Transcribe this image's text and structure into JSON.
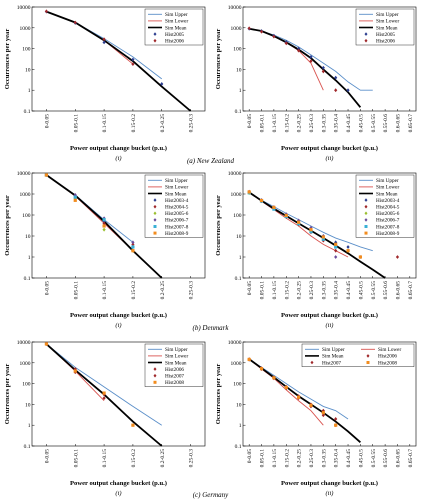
{
  "captions": [
    "(a) New Zealand",
    "(b) Denmark",
    "(c) Germany"
  ],
  "colors": {
    "Sim Upper": "#5b8fc9",
    "Sim Lower": "#d9534f",
    "Sim Mean": "#000000",
    "Hist2005": "#2c3e8f",
    "Hist2006": "#a0282b",
    "Hist2003-4": "#2c3e8f",
    "Hist2004-5": "#a0282b",
    "Hist2005-6": "#9bbf2f",
    "Hist2006-7": "#6a4c9c",
    "Hist2007-8": "#3ab0d6",
    "Hist2008-9": "#f28c1e",
    "Hist2007": "#a0282b",
    "Hist2008": "#f28c1e"
  },
  "chart_data": [
    {
      "type": "line",
      "panel": "(i)",
      "caption": "(a) New Zealand",
      "xlabel": "Power output change bucket (p.u.)",
      "ylabel": "Occurrences per year",
      "categories": [
        "0-0.05",
        "0.05-0.1",
        "0.1-0.15",
        "0.15-0.2",
        "0.2-0.25",
        "0.25-0.3"
      ],
      "ylim": [
        0.1,
        10000
      ],
      "yscale": "log",
      "legend": "top-right",
      "series": [
        {
          "name": "Sim Upper",
          "kind": "line",
          "values": [
            6000,
            1800,
            300,
            40,
            3.5,
            null
          ]
        },
        {
          "name": "Sim Lower",
          "kind": "line",
          "values": [
            6000,
            1800,
            250,
            18,
            null,
            null
          ]
        },
        {
          "name": "Sim Mean",
          "kind": "line",
          "values": [
            6000,
            1800,
            250,
            25,
            1.5,
            0.1
          ]
        },
        {
          "name": "Hist2005",
          "kind": "marker",
          "marker": "diamond",
          "values": [
            6000,
            1700,
            200,
            30,
            2,
            null
          ]
        },
        {
          "name": "Hist2006",
          "kind": "marker",
          "marker": "diamond",
          "values": [
            6200,
            1800,
            280,
            18,
            null,
            null
          ]
        }
      ]
    },
    {
      "type": "line",
      "panel": "(ii)",
      "caption": "(a) New Zealand",
      "xlabel": "Power output change bucket (p.u.)",
      "ylabel": "Occurrences per year",
      "categories": [
        "0-0.05",
        "0.05-0.1",
        "0.1-0.15",
        "0.15-0.2",
        "0.2-0.25",
        "0.25-0.3",
        "0.3-0.35",
        "0.35-0.4",
        "0.4-0.45",
        "0.45-0.5",
        "0.5-0.55",
        "0.55-0.6",
        "0.6-0.65",
        "0.65-0.7"
      ],
      "ylim": [
        0.1,
        10000
      ],
      "yscale": "log",
      "legend": "top-right",
      "series": [
        {
          "name": "Sim Upper",
          "kind": "line",
          "values": [
            900,
            700,
            450,
            250,
            120,
            50,
            20,
            8,
            2.5,
            1,
            1,
            null,
            null,
            null
          ]
        },
        {
          "name": "Sim Lower",
          "kind": "line",
          "values": [
            900,
            700,
            400,
            200,
            80,
            20,
            1,
            null,
            null,
            null,
            null,
            null,
            null,
            null
          ]
        },
        {
          "name": "Sim Mean",
          "kind": "line",
          "values": [
            900,
            700,
            400,
            200,
            90,
            35,
            10,
            3,
            0.8,
            0.15,
            null,
            null,
            null,
            null
          ]
        },
        {
          "name": "Hist2005",
          "kind": "marker",
          "marker": "diamond",
          "values": [
            900,
            700,
            420,
            210,
            100,
            40,
            12,
            4,
            1,
            null,
            null,
            null,
            null,
            null
          ]
        },
        {
          "name": "Hist2006",
          "kind": "marker",
          "marker": "diamond",
          "values": [
            950,
            650,
            380,
            180,
            80,
            25,
            8,
            1,
            null,
            null,
            null,
            null,
            null,
            null
          ]
        }
      ]
    },
    {
      "type": "line",
      "panel": "(i)",
      "caption": "(b) Denmark",
      "xlabel": "Power output change bucket (p.u.)",
      "ylabel": "Occurrences per year",
      "categories": [
        "0-0.05",
        "0.05-0.1",
        "0.1-0.15",
        "0.15-0.2",
        "0.2-0.25",
        "0.25-0.3"
      ],
      "ylim": [
        0.1,
        10000
      ],
      "yscale": "log",
      "legend": "top-right",
      "series": [
        {
          "name": "Sim Upper",
          "kind": "line",
          "values": [
            8000,
            900,
            60,
            5,
            null,
            null
          ]
        },
        {
          "name": "Sim Lower",
          "kind": "line",
          "values": [
            8000,
            800,
            40,
            2,
            null,
            null
          ]
        },
        {
          "name": "Sim Mean",
          "kind": "line",
          "values": [
            8000,
            850,
            50,
            2,
            0.1,
            null
          ]
        },
        {
          "name": "Hist2003-4",
          "kind": "marker",
          "marker": "diamond",
          "values": [
            8000,
            800,
            50,
            3,
            null,
            null
          ]
        },
        {
          "name": "Hist2004-5",
          "kind": "marker",
          "marker": "diamond",
          "values": [
            8000,
            700,
            40,
            4,
            null,
            null
          ]
        },
        {
          "name": "Hist2005-6",
          "kind": "marker",
          "marker": "diamond",
          "values": [
            8000,
            600,
            20,
            2,
            null,
            null
          ]
        },
        {
          "name": "Hist2006-7",
          "kind": "marker",
          "marker": "diamond",
          "values": [
            8000,
            900,
            70,
            5,
            null,
            null
          ]
        },
        {
          "name": "Hist2007-8",
          "kind": "marker",
          "marker": "square",
          "values": [
            8000,
            700,
            60,
            3,
            null,
            null
          ]
        },
        {
          "name": "Hist2008-9",
          "kind": "marker",
          "marker": "square",
          "values": [
            8000,
            500,
            30,
            2,
            null,
            null
          ]
        }
      ]
    },
    {
      "type": "line",
      "panel": "(ii)",
      "caption": "(b) Denmark",
      "xlabel": "Power output change bucket (p.u.)",
      "ylabel": "Occurrences per year",
      "categories": [
        "0-0.05",
        "0.05-0.1",
        "0.1-0.15",
        "0.15-0.2",
        "0.2-0.25",
        "0.25-0.3",
        "0.3-0.35",
        "0.35-0.4",
        "0.4-0.45",
        "0.45-0.5",
        "0.5-0.55",
        "0.55-0.6",
        "0.6-0.65",
        "0.65-0.7"
      ],
      "ylim": [
        0.1,
        10000
      ],
      "yscale": "log",
      "legend": "top-right",
      "series": [
        {
          "name": "Sim Upper",
          "kind": "line",
          "values": [
            1200,
            500,
            250,
            120,
            60,
            30,
            15,
            8,
            5,
            3,
            2,
            null,
            null,
            null
          ]
        },
        {
          "name": "Sim Lower",
          "kind": "line",
          "values": [
            1200,
            450,
            180,
            70,
            30,
            10,
            4,
            2,
            1,
            null,
            null,
            null,
            null,
            null
          ]
        },
        {
          "name": "Sim Mean",
          "kind": "line",
          "values": [
            1200,
            480,
            200,
            90,
            40,
            18,
            8,
            3.5,
            1.5,
            0.6,
            0.25,
            0.1,
            null,
            null
          ]
        },
        {
          "name": "Hist2003-4",
          "kind": "marker",
          "marker": "diamond",
          "values": [
            1200,
            500,
            220,
            100,
            50,
            20,
            10,
            5,
            3,
            1,
            null,
            null,
            null,
            null
          ]
        },
        {
          "name": "Hist2004-5",
          "kind": "marker",
          "marker": "diamond",
          "values": [
            1300,
            450,
            200,
            80,
            35,
            15,
            6,
            2,
            null,
            null,
            null,
            null,
            1,
            null
          ]
        },
        {
          "name": "Hist2005-6",
          "kind": "marker",
          "marker": "diamond",
          "values": [
            1100,
            480,
            210,
            90,
            40,
            18,
            8,
            3,
            2,
            null,
            null,
            null,
            null,
            null
          ]
        },
        {
          "name": "Hist2006-7",
          "kind": "marker",
          "marker": "diamond",
          "values": [
            1200,
            520,
            240,
            110,
            55,
            25,
            10,
            1,
            null,
            null,
            null,
            null,
            null,
            null
          ]
        },
        {
          "name": "Hist2007-8",
          "kind": "marker",
          "marker": "square",
          "values": [
            1150,
            460,
            190,
            85,
            38,
            16,
            7,
            3,
            null,
            null,
            null,
            null,
            null,
            null
          ]
        },
        {
          "name": "Hist2008-9",
          "kind": "marker",
          "marker": "square",
          "values": [
            1250,
            490,
            230,
            95,
            45,
            20,
            9,
            4,
            2,
            1,
            null,
            null,
            null,
            null
          ]
        }
      ]
    },
    {
      "type": "line",
      "panel": "(i)",
      "caption": "(c) Germany",
      "xlabel": "Power output change bucket (p.u.)",
      "ylabel": "Occurrences per year",
      "categories": [
        "0-0.05",
        "0.05-0.1",
        "0.1-0.15",
        "0.15-0.2",
        "0.2-0.25",
        "0.25-0.3"
      ],
      "ylim": [
        0.1,
        10000
      ],
      "yscale": "log",
      "legend": "top-right",
      "series": [
        {
          "name": "Sim Upper",
          "kind": "line",
          "values": [
            8000,
            600,
            70,
            8,
            1,
            null
          ]
        },
        {
          "name": "Sim Lower",
          "kind": "line",
          "values": [
            8000,
            400,
            15,
            null,
            null,
            null
          ]
        },
        {
          "name": "Sim Mean",
          "kind": "line",
          "values": [
            8000,
            450,
            30,
            1.5,
            0.1,
            null
          ]
        },
        {
          "name": "Hist2006",
          "kind": "marker",
          "marker": "diamond",
          "values": [
            8000,
            500,
            30,
            null,
            null,
            null
          ]
        },
        {
          "name": "Hist2007",
          "kind": "marker",
          "marker": "diamond",
          "values": [
            8000,
            350,
            20,
            null,
            null,
            null
          ]
        },
        {
          "name": "Hist2008",
          "kind": "marker",
          "marker": "square",
          "values": [
            8000,
            400,
            35,
            1,
            null,
            null
          ]
        }
      ]
    },
    {
      "type": "line",
      "panel": "(ii)",
      "caption": "(c) Germany",
      "xlabel": "Power output change bucket (p.u.)",
      "ylabel": "Occurrences per year",
      "categories": [
        "0-0.05",
        "0.05-0.1",
        "0.1-0.15",
        "0.15-0.2",
        "0.2-0.25",
        "0.25-0.3",
        "0.3-0.35",
        "0.35-0.4",
        "0.4-0.45",
        "0.45-0.5",
        "0.5-0.55",
        "0.55-0.6",
        "0.6-0.65",
        "0.65-0.7"
      ],
      "ylim": [
        0.1,
        10000
      ],
      "yscale": "log",
      "legend": "top-right",
      "series": [
        {
          "name": "Sim Upper",
          "kind": "line",
          "values": [
            1500,
            600,
            250,
            100,
            40,
            18,
            8,
            5,
            2,
            null,
            null,
            null,
            null,
            null
          ]
        },
        {
          "name": "Sim Lower",
          "kind": "line",
          "values": [
            1500,
            500,
            180,
            50,
            15,
            5,
            1,
            null,
            null,
            null,
            null,
            null,
            null,
            null
          ]
        },
        {
          "name": "Sim Mean",
          "kind": "line",
          "values": [
            1500,
            550,
            200,
            70,
            25,
            10,
            4,
            1.5,
            0.5,
            0.15,
            null,
            null,
            null,
            null
          ]
        },
        {
          "name": "Hist2006",
          "kind": "marker",
          "marker": "diamond",
          "values": [
            1500,
            550,
            200,
            70,
            25,
            10,
            5,
            2,
            null,
            null,
            null,
            null,
            null,
            null
          ]
        },
        {
          "name": "Hist2007",
          "kind": "marker",
          "marker": "diamond",
          "values": [
            1400,
            500,
            180,
            60,
            20,
            8,
            3,
            1,
            null,
            null,
            null,
            null,
            null,
            null
          ]
        },
        {
          "name": "Hist2008",
          "kind": "marker",
          "marker": "square",
          "values": [
            1450,
            520,
            190,
            65,
            22,
            9,
            4,
            1,
            null,
            null,
            null,
            null,
            null,
            null
          ]
        }
      ]
    }
  ]
}
